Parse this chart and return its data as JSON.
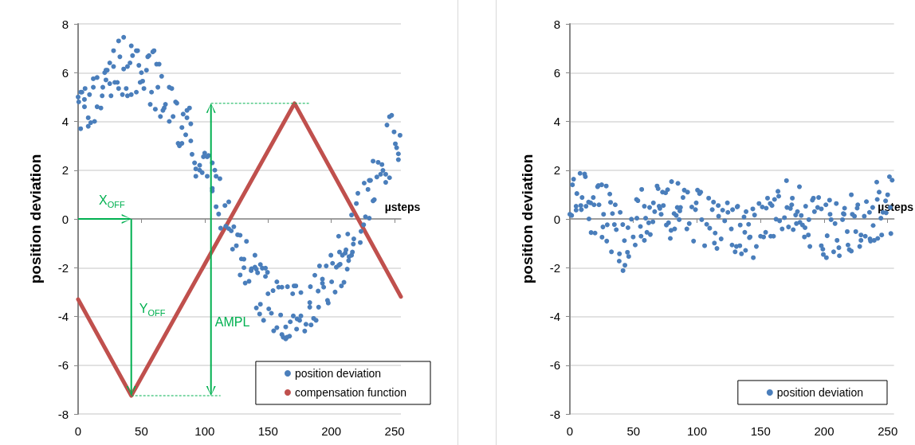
{
  "chart_data": [
    {
      "type": "scatter",
      "ylabel": "position deviation",
      "xlabel": "µsteps",
      "xlim": [
        0,
        255
      ],
      "xticks": [
        0,
        50,
        100,
        150,
        200,
        250
      ],
      "ylim": [
        -8,
        8
      ],
      "yticks": [
        -8,
        -6,
        -4,
        -2,
        0,
        2,
        4,
        6,
        8
      ],
      "grid": "y",
      "legend": "bottom right",
      "marker": "circle",
      "annotations": [
        "X$_{OFF}$",
        "Y$_{OFF}$",
        "AMPL"
      ],
      "series": [
        {
          "name": "position deviation",
          "color": "#4a7ebb",
          "x": [
            0,
            0.5,
            2,
            2,
            3,
            5,
            5,
            5.5,
            8,
            8,
            9,
            10,
            12,
            12,
            13,
            15,
            15,
            18,
            19,
            19.5,
            21,
            22,
            23,
            22,
            25,
            25,
            26,
            28,
            28,
            29,
            31,
            32,
            36,
            33,
            32,
            35,
            36,
            38,
            39,
            39,
            41,
            42,
            42,
            43,
            46,
            47,
            46,
            48,
            49,
            50,
            51,
            52,
            54,
            55,
            56,
            57,
            58,
            59,
            60,
            61,
            62,
            63,
            64,
            65,
            66,
            67,
            68,
            69,
            72,
            72,
            74,
            75,
            77,
            78,
            79,
            80,
            82,
            82,
            83,
            85,
            86,
            86,
            88,
            89,
            89,
            90,
            92,
            93,
            93,
            96,
            96,
            98,
            99,
            100,
            102,
            103,
            102,
            106,
            108,
            109,
            112,
            106,
            106,
            109,
            111,
            116,
            119,
            112.6,
            116.7,
            119,
            121,
            123,
            126,
            128,
            122,
            125,
            133,
            129,
            131,
            128,
            131,
            132,
            135,
            139.7,
            137,
            136.7,
            139.7,
            140.8,
            141.8,
            144,
            145.5,
            148,
            148,
            149.6,
            140.8,
            143.4,
            144,
            146.5,
            150.6,
            152.7,
            150,
            154,
            157,
            158.4,
            161,
            160,
            154.5,
            157,
            161,
            162,
            164,
            165,
            167,
            164,
            167.6,
            170,
            165.4,
            169.5,
            170.6,
            172,
            172.6,
            173,
            175,
            176,
            176,
            179,
            180,
            183,
            183,
            183.5,
            184,
            186,
            188,
            187,
            189.6,
            190,
            190.7,
            193,
            193,
            194,
            196,
            197,
            197.6,
            199.7,
            200.3,
            201,
            203,
            204,
            206,
            206.5,
            207,
            208,
            208.8,
            210,
            211,
            211.6,
            212.6,
            213.7,
            214,
            216,
            216.7,
            217.4,
            205.8,
            213,
            217.8,
            222.9,
            223.5,
            225.6,
            216,
            219.8,
            221,
            227,
            230,
            226,
            229,
            230,
            231,
            233,
            234,
            233,
            237,
            240,
            240.8,
            236,
            239,
            243,
            243,
            246,
            244,
            246,
            247.7,
            249.6,
            254.3,
            250.6,
            251.6,
            253,
            253
          ],
          "values": [
            5.0,
            4.8,
            3.7,
            5.2,
            5.2,
            4.9,
            4.6,
            5.35,
            4.15,
            3.8,
            5.1,
            3.95,
            5.4,
            5.75,
            4.0,
            5.8,
            4.6,
            4.55,
            5.05,
            5.4,
            6.0,
            6.1,
            6.1,
            5.7,
            6.4,
            5.55,
            5.05,
            6.9,
            6.25,
            5.6,
            5.6,
            7.3,
            7.45,
            6.65,
            5.35,
            5.1,
            6.15,
            5.35,
            5.05,
            6.25,
            6.4,
            5.1,
            7.1,
            6.7,
            6.9,
            6.9,
            5.2,
            6.3,
            5.6,
            6.0,
            5.65,
            5.35,
            6.1,
            6.65,
            6.7,
            4.7,
            5.2,
            6.85,
            6.9,
            4.5,
            6.35,
            5.4,
            6.35,
            4.2,
            5.85,
            4.45,
            4.55,
            4.7,
            4.0,
            5.4,
            5.35,
            4.2,
            4.8,
            4.75,
            3.1,
            3.0,
            3.1,
            3.75,
            4.3,
            3.45,
            4.45,
            4.15,
            4.55,
            3.9,
            3.2,
            2.65,
            2.3,
            2.05,
            1.75,
            2.2,
            2.0,
            1.9,
            2.55,
            2.7,
            2.55,
            2.6,
            1.75,
            2.3,
            2.0,
            1.75,
            1.65,
            1.25,
            1.15,
            0.5,
            0.2,
            0.55,
            0.7,
            -0.38,
            -0.3,
            -0.4,
            -0.49,
            -0.32,
            -0.65,
            -0.67,
            -1.24,
            -1.1,
            -0.92,
            -1.64,
            -1.65,
            -2.3,
            -2.0,
            -2.63,
            -2.56,
            -1.49,
            -2.04,
            -2.12,
            -1.98,
            -2.06,
            -2.21,
            -1.87,
            -2.02,
            -2.02,
            -2.36,
            -2.19,
            -3.65,
            -3.9,
            -3.5,
            -4.16,
            -3.69,
            -3.87,
            -3.07,
            -2.94,
            -2.58,
            -2.8,
            -2.8,
            -3.94,
            -4.59,
            -4.46,
            -4.74,
            -4.85,
            -4.92,
            -4.85,
            -4.81,
            -4.43,
            -4.22,
            -3.98,
            -2.78,
            -3.07,
            -2.75,
            -2.75,
            -4.52,
            -4.1,
            -4.16,
            -3.98,
            -3.02,
            -4.6,
            -4.32,
            -3.62,
            -3.43,
            -2.78,
            -4.35,
            -4.08,
            -4.16,
            -2.31,
            -2.96,
            -3.62,
            -1.93,
            -2.47,
            -2.64,
            -2.8,
            -1.93,
            -3.34,
            -3.45,
            -1.49,
            -2.58,
            -1.82,
            -3.0,
            -1.98,
            -1.9,
            -1.36,
            -1.86,
            -2.75,
            -1.49,
            -2.6,
            -1.4,
            -1.27,
            -2.06,
            -1.71,
            -1.55,
            -1.49,
            -1.36,
            -1.03,
            -0.71,
            -0.62,
            -0.82,
            -0.97,
            -0.51,
            -0.24,
            0.16,
            0.63,
            1.05,
            0.09,
            0.03,
            1.47,
            1.21,
            1.58,
            1.58,
            0.74,
            0.79,
            2.37,
            2.32,
            2.23,
            1.99,
            1.72,
            1.83,
            1.83,
            1.5,
            1.69,
            3.85,
            4.19,
            4.25,
            3.57,
            3.43,
            3.08,
            2.92,
            2.67,
            2.43
          ]
        },
        {
          "name": "compensation function",
          "type": "line",
          "marker": "none",
          "line_style": "solid",
          "color": "#c0504d",
          "x": [
            0,
            42,
            171,
            255
          ],
          "values": [
            -3.3,
            -7.25,
            4.74,
            -3.19
          ]
        }
      ]
    },
    {
      "type": "scatter",
      "ylabel": "position deviation",
      "xlabel": "µsteps",
      "xlim": [
        0,
        255
      ],
      "xticks": [
        0,
        50,
        100,
        150,
        200,
        250
      ],
      "ylim": [
        -8,
        8
      ],
      "yticks": [
        -8,
        -6,
        -4,
        -2,
        0,
        2,
        4,
        6,
        8
      ],
      "grid": "y",
      "legend": "bottom right",
      "marker": "circle",
      "series": [
        {
          "name": "position deviation",
          "color": "#4a7ebb",
          "x": [
            0,
            1.4,
            2,
            2.9,
            4.9,
            5.5,
            4.9,
            8,
            8.6,
            9,
            9.6,
            11.6,
            12.2,
            12.7,
            14.7,
            15,
            16.3,
            16.7,
            18.4,
            19,
            19.8,
            21.8,
            22.4,
            22.9,
            25,
            25.3,
            26,
            26.5,
            28.6,
            29,
            29.4,
            31.4,
            32,
            32.7,
            33.5,
            35,
            35.7,
            36.5,
            38.8,
            39,
            39.6,
            41.6,
            43.3,
            41.8,
            42.9,
            45.3,
            46.3,
            45.7,
            48.4,
            49.8,
            51.4,
            52.4,
            53.5,
            52.7,
            55.5,
            56.5,
            56,
            58.6,
            58.6,
            60.6,
            59.6,
            62,
            63.3,
            62.7,
            65.3,
            65.7,
            66.7,
            68.6,
            69.4,
            70.2,
            70.8,
            71.8,
            72.9,
            73.5,
            75.3,
            75.9,
            76.9,
            77.6,
            79,
            79.6,
            80,
            82,
            82.4,
            83.7,
            84.5,
            85,
            86,
            86.5,
            87,
            89,
            90,
            92,
            92.6,
            93.9,
            95.9,
            97.3,
            98.8,
            99.4,
            100.4,
            102,
            102.9,
            103.7,
            106,
            107.6,
            109.2,
            110,
            112,
            113,
            113.7,
            114.3,
            115.7,
            116.7,
            117,
            119,
            120.2,
            121.8,
            123.9,
            124.3,
            127,
            127.6,
            128,
            130,
            131,
            131.6,
            132,
            133.7,
            134,
            135,
            137,
            137.6,
            138.2,
            138.6,
            140.6,
            141.2,
            141.8,
            143.9,
            144.3,
            145.3,
            146.7,
            148.8,
            150,
            151.4,
            152.4,
            154,
            154.5,
            155.5,
            157.6,
            158,
            159,
            160.2,
            161,
            162.2,
            163.7,
            164.3,
            165,
            167,
            168.8,
            170.4,
            170.8,
            172,
            173.5,
            174.5,
            175,
            175.7,
            177.6,
            178.2,
            179,
            180.6,
            181,
            182,
            183,
            184.5,
            185.5,
            185,
            187.6,
            188,
            188.8,
            190.8,
            191.6,
            192.4,
            194.9,
            195.7,
            197.8,
            197.8,
            199.4,
            199,
            201.4,
            201.8,
            202.4,
            204.7,
            204.3,
            205.5,
            207.5,
            208.6,
            209.6,
            210.2,
            211.6,
            212,
            214.5,
            215.1,
            215.7,
            216.1,
            218.2,
            218.8,
            219.8,
            221.4,
            221.4,
            222.2,
            223.9,
            224.9,
            226,
            226.5,
            228,
            229,
            229,
            231.6,
            232.4,
            233.3,
            235.7,
            236.1,
            236.5,
            238.2,
            238.6,
            239.4,
            241.4,
            241.8,
            242.2,
            243.3,
            244.7,
            245.3,
            246.3,
            248.4,
            248.8,
            250,
            251.4,
            252,
            252.5,
            253.5
          ],
          "values": [
            0.19,
            0.14,
            1.4,
            1.63,
            0.52,
            1.04,
            0.36,
            1.87,
            0.55,
            0.38,
            0.88,
            1.84,
            1.73,
            0.52,
            0.69,
            0,
            0.66,
            -0.56,
            0.88,
            0.58,
            -0.58,
            1.32,
            1.37,
            0.58,
            1.4,
            -0.75,
            -0.33,
            0.19,
            1.35,
            -0.91,
            -0.24,
            1.02,
            0.68,
            -1.35,
            0.22,
            -0.23,
            0.58,
            -0.44,
            -1.73,
            -1.43,
            0.27,
            -0.23,
            -1.9,
            -2.12,
            -0.89,
            -1.37,
            -1.54,
            -0.36,
            -0.01,
            -0.74,
            -1.07,
            0.8,
            0.75,
            0.03,
            -0.31,
            1.21,
            -0.71,
            -0.88,
            0.52,
            -0.55,
            0.03,
            -0.16,
            -0.64,
            0.47,
            -0.12,
            0.66,
            0.3,
            1.35,
            1.24,
            0.52,
            0.43,
            0.19,
            1.1,
            0.55,
            1.07,
            -0.25,
            1.2,
            -0.16,
            -0.8,
            -0.47,
            1.53,
            0.22,
            -0.41,
            0.14,
            0.47,
            1.46,
            -0.03,
            0.33,
            0.47,
            0.88,
            1.18,
            -0.41,
            1.1,
            -0.19,
            0.49,
            -0.91,
            0.38,
            0.66,
            1.18,
            1.04,
            1.1,
            -0.03,
            -1.1,
            -0.22,
            0.85,
            -0.38,
            0.38,
            0.69,
            -0.99,
            -0.58,
            -1.21,
            0.55,
            0.11,
            -0.82,
            0.36,
            -0.08,
            0.66,
            0.27,
            -0.41,
            -1.07,
            0.38,
            -1.35,
            -1.13,
            0.49,
            0.52,
            -1.1,
            -0.25,
            -1.43,
            0.08,
            -0.55,
            -1.29,
            0.3,
            -0.22,
            -0.77,
            -0.74,
            0.41,
            -1.59,
            0.16,
            -1.13,
            0.63,
            -0.71,
            0.49,
            -0.74,
            -0.55,
            0.44,
            0.85,
            0.63,
            -0.71,
            0.55,
            -0.71,
            0.8,
            -0.01,
            1.13,
            0.93,
            -0.08,
            -0.41,
            0.05,
            1.57,
            0.47,
            -0.33,
            0.43,
            0.58,
            0.85,
            -0.44,
            0.16,
            -0.19,
            0.3,
            1.32,
            -0.14,
            0.14,
            -0.25,
            -0.74,
            0.52,
            -0.36,
            -0.66,
            -0.03,
            -1.13,
            0.77,
            0.85,
            0.3,
            0.47,
            0.88,
            0.41,
            -1.1,
            -1.46,
            -1.24,
            0.58,
            -1.59,
            -0.69,
            0.19,
            0.77,
            -0.03,
            -1.35,
            -0.19,
            0.63,
            -0.88,
            -1.18,
            -1.51,
            -0.03,
            0.22,
            0.19,
            0.44,
            -0.52,
            -1.07,
            -1.26,
            -1.32,
            0.99,
            0.19,
            0.11,
            -0.52,
            0.44,
            0.58,
            -1.13,
            -0.66,
            -0.88,
            0.11,
            -0.71,
            0.71,
            0.27,
            -0.82,
            -0.91,
            0.47,
            -0.27,
            -0.88,
            1.51,
            0.8,
            -0.8,
            1.1,
            0.03,
            -0.66,
            0.27,
            0.74,
            0.25,
            0.99,
            1.73,
            0.47,
            -0.6,
            1.59
          ]
        }
      ]
    }
  ]
}
